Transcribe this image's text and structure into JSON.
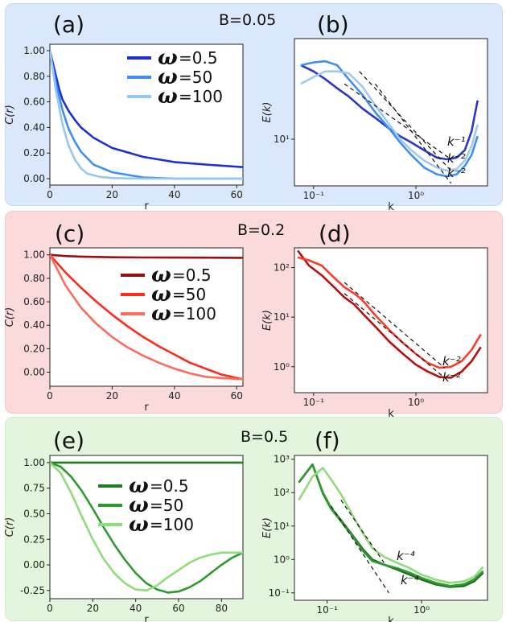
{
  "bands": [
    {
      "title": "B=0.05",
      "color": "#dbe8fb"
    },
    {
      "title": "B=0.2",
      "color": "#fadada"
    },
    {
      "title": "B=0.5",
      "color": "#e4f5dd"
    }
  ],
  "chart_data": [
    {
      "panel": "(a)",
      "type": "line",
      "xlabel": "r",
      "ylabel": "C(r)",
      "xlim": [
        0,
        62
      ],
      "ylim": [
        -0.05,
        1.05
      ],
      "xticks": [
        0,
        20,
        40,
        60
      ],
      "yticks": [
        0.0,
        0.2,
        0.4,
        0.6,
        0.8,
        1.0
      ],
      "ytick_labels": [
        "0.00",
        "0.20",
        "0.40",
        "0.60",
        "0.80",
        "1.00"
      ],
      "series": [
        {
          "name": "ω =0.5",
          "color": "#1f2fd6",
          "x": [
            0,
            1,
            2,
            3,
            4,
            6,
            8,
            10,
            14,
            20,
            30,
            40,
            50,
            62
          ],
          "y": [
            1.0,
            0.9,
            0.8,
            0.7,
            0.62,
            0.53,
            0.46,
            0.4,
            0.32,
            0.24,
            0.17,
            0.13,
            0.11,
            0.09
          ]
        },
        {
          "name": "ω =50",
          "color": "#3f8ff0",
          "x": [
            0,
            2,
            4,
            6,
            8,
            10,
            14,
            20,
            30,
            40,
            50,
            62
          ],
          "y": [
            1.0,
            0.74,
            0.54,
            0.39,
            0.29,
            0.21,
            0.11,
            0.05,
            0.01,
            0.0,
            0.0,
            0.0
          ]
        },
        {
          "name": "ω =100",
          "color": "#99c8ee",
          "x": [
            0,
            2,
            4,
            6,
            8,
            10,
            12,
            16,
            20,
            30,
            62
          ],
          "y": [
            1.0,
            0.68,
            0.43,
            0.26,
            0.15,
            0.08,
            0.04,
            0.015,
            0.005,
            0.0,
            0.0
          ]
        }
      ]
    },
    {
      "panel": "(b)",
      "type": "line",
      "xscale": "log",
      "yscale": "log",
      "xlabel": "k",
      "ylabel": "E(k)",
      "xlim": [
        0.065,
        5
      ],
      "ylim": [
        2.2,
        260
      ],
      "xticks": [
        0.1,
        1
      ],
      "xtick_labels": [
        "10⁻¹",
        "10⁰"
      ],
      "yticks": [
        10
      ],
      "ytick_labels": [
        "10¹"
      ],
      "series": [
        {
          "name": "ω =0.5",
          "color": "#2a35c9",
          "x": [
            0.075,
            0.1,
            0.13,
            0.17,
            0.22,
            0.3,
            0.4,
            0.55,
            0.7,
            0.9,
            1.2,
            1.6,
            2.0,
            2.5,
            3.0,
            3.5,
            4.0
          ],
          "y": [
            110,
            90,
            70,
            52,
            40,
            27,
            20,
            14,
            11,
            9,
            7,
            5.5,
            5.2,
            5.5,
            7,
            13,
            35
          ]
        },
        {
          "name": "ω =50",
          "color": "#3f8ff0",
          "x": [
            0.075,
            0.1,
            0.13,
            0.17,
            0.22,
            0.3,
            0.4,
            0.55,
            0.7,
            0.9,
            1.2,
            1.6,
            2.0,
            2.5,
            3.0,
            3.5,
            4.0
          ],
          "y": [
            110,
            120,
            125,
            110,
            70,
            42,
            24,
            14,
            9,
            6,
            4,
            3.2,
            3.0,
            3.2,
            4.2,
            6,
            11
          ]
        },
        {
          "name": "ω =100",
          "color": "#9fc9ee",
          "x": [
            0.075,
            0.1,
            0.13,
            0.17,
            0.22,
            0.3,
            0.4,
            0.55,
            0.7,
            0.9,
            1.2,
            1.6,
            2.0,
            2.5,
            3.0,
            3.5,
            4.0
          ],
          "y": [
            60,
            75,
            90,
            90,
            85,
            55,
            30,
            16,
            10,
            7,
            5,
            4,
            3.6,
            3.8,
            5,
            8,
            16
          ]
        }
      ],
      "guides": [
        {
          "label": "k⁻¹",
          "x": [
            0.2,
            2.2
          ],
          "y": [
            60,
            5.2
          ]
        },
        {
          "label": "k⁻²",
          "x": [
            0.28,
            2.2
          ],
          "y": [
            90,
            3.6
          ]
        },
        {
          "label": "k⁻²",
          "x": [
            0.4,
            2.2
          ],
          "y": [
            60,
            2.4
          ]
        }
      ]
    },
    {
      "panel": "(c)",
      "type": "line",
      "xlabel": "r",
      "ylabel": "C(r)",
      "xlim": [
        0,
        62
      ],
      "ylim": [
        -0.12,
        1.06
      ],
      "xticks": [
        0,
        20,
        40,
        60
      ],
      "yticks": [
        0.0,
        0.2,
        0.4,
        0.6,
        0.8,
        1.0
      ],
      "ytick_labels": [
        "0.00",
        "0.20",
        "0.40",
        "0.60",
        "0.80",
        "1.00"
      ],
      "series": [
        {
          "name": "ω =0.5",
          "color": "#9b0f0f",
          "x": [
            0,
            5,
            10,
            20,
            30,
            40,
            50,
            62
          ],
          "y": [
            1.0,
            0.99,
            0.985,
            0.98,
            0.978,
            0.977,
            0.976,
            0.975
          ]
        },
        {
          "name": "ω =50",
          "color": "#ff2a1a",
          "x": [
            0,
            5,
            10,
            15,
            20,
            25,
            30,
            35,
            40,
            45,
            50,
            55,
            62
          ],
          "y": [
            1.0,
            0.85,
            0.72,
            0.6,
            0.49,
            0.39,
            0.3,
            0.22,
            0.15,
            0.08,
            0.03,
            -0.02,
            -0.06
          ]
        },
        {
          "name": "ω =100",
          "color": "#ff6b5a",
          "x": [
            0,
            5,
            10,
            15,
            20,
            25,
            30,
            35,
            40,
            45,
            50,
            55,
            62
          ],
          "y": [
            1.0,
            0.74,
            0.55,
            0.41,
            0.3,
            0.21,
            0.14,
            0.08,
            0.03,
            -0.01,
            -0.04,
            -0.05,
            -0.06
          ]
        }
      ]
    },
    {
      "panel": "(d)",
      "type": "line",
      "xscale": "log",
      "yscale": "log",
      "xlabel": "k",
      "ylabel": "E(k)",
      "xlim": [
        0.065,
        5
      ],
      "ylim": [
        0.3,
        250
      ],
      "xticks": [
        0.1,
        1
      ],
      "xtick_labels": [
        "10⁻¹",
        "10⁰"
      ],
      "yticks": [
        1,
        10,
        100
      ],
      "ytick_labels": [
        "10⁰",
        "10¹",
        "10²"
      ],
      "series": [
        {
          "name": "ω =0.5",
          "color": "#b80f0f",
          "x": [
            0.07,
            0.09,
            0.12,
            0.15,
            0.2,
            0.25,
            0.3,
            0.4,
            0.55,
            0.75,
            1.0,
            1.3,
            1.7,
            2.2,
            2.8,
            3.5,
            4.3
          ],
          "y": [
            220,
            110,
            70,
            45,
            25,
            18,
            12,
            6.5,
            3.2,
            1.8,
            1.1,
            0.8,
            0.62,
            0.6,
            0.8,
            1.3,
            2.5
          ]
        },
        {
          "name": "ω =50",
          "color": "#ff3a2a",
          "x": [
            0.07,
            0.09,
            0.12,
            0.15,
            0.2,
            0.25,
            0.3,
            0.4,
            0.55,
            0.75,
            1.0,
            1.3,
            1.7,
            2.2,
            2.8,
            3.5,
            4.3
          ],
          "y": [
            160,
            140,
            110,
            70,
            40,
            30,
            22,
            11,
            5.5,
            3,
            1.8,
            1.2,
            0.95,
            1.0,
            1.3,
            2.2,
            4.5
          ]
        }
      ],
      "guides": [
        {
          "label": "k⁻²",
          "x": [
            0.2,
            1.9
          ],
          "y": [
            50,
            0.95
          ]
        },
        {
          "label": "k⁻²",
          "x": [
            0.2,
            1.9
          ],
          "y": [
            30,
            0.6
          ]
        }
      ]
    },
    {
      "panel": "(e)",
      "type": "line",
      "xlabel": "r",
      "ylabel": "C(r)",
      "xlim": [
        0,
        90
      ],
      "ylim": [
        -0.33,
        1.07
      ],
      "xticks": [
        0,
        20,
        40,
        60,
        80
      ],
      "yticks": [
        -0.25,
        0.0,
        0.25,
        0.5,
        0.75,
        1.0
      ],
      "ytick_labels": [
        "-0.25",
        "0.00",
        "0.25",
        "0.50",
        "0.75",
        "1.00"
      ],
      "series": [
        {
          "name": "ω =0.5",
          "color": "#1e7f1e",
          "x": [
            0,
            10,
            20,
            30,
            40,
            50,
            60,
            70,
            80,
            90
          ],
          "y": [
            1.0,
            1.0,
            1.0,
            1.0,
            1.0,
            1.0,
            1.0,
            1.0,
            1.0,
            1.0
          ]
        },
        {
          "name": "ω =50",
          "color": "#2e9a2e",
          "x": [
            0,
            5,
            10,
            15,
            20,
            25,
            30,
            35,
            40,
            45,
            50,
            55,
            60,
            65,
            70,
            75,
            80,
            85,
            90
          ],
          "y": [
            1.0,
            0.96,
            0.86,
            0.72,
            0.55,
            0.37,
            0.2,
            0.05,
            -0.08,
            -0.18,
            -0.24,
            -0.27,
            -0.26,
            -0.22,
            -0.16,
            -0.08,
            0.0,
            0.07,
            0.12
          ]
        },
        {
          "name": "ω =100",
          "color": "#8fdc7a",
          "x": [
            0,
            5,
            10,
            15,
            20,
            25,
            30,
            35,
            40,
            45,
            50,
            55,
            60,
            65,
            70,
            75,
            80,
            85,
            90
          ],
          "y": [
            1.0,
            0.9,
            0.7,
            0.47,
            0.25,
            0.06,
            -0.08,
            -0.18,
            -0.24,
            -0.25,
            -0.2,
            -0.12,
            -0.05,
            0.02,
            0.07,
            0.1,
            0.12,
            0.12,
            0.12
          ]
        }
      ]
    },
    {
      "panel": "(f)",
      "type": "line",
      "xscale": "log",
      "yscale": "log",
      "xlabel": "k",
      "ylabel": "E(k)",
      "xlim": [
        0.045,
        5
      ],
      "ylim": [
        0.06,
        1300
      ],
      "xticks": [
        0.1,
        1
      ],
      "xtick_labels": [
        "10⁻¹",
        "10⁰"
      ],
      "yticks": [
        0.1,
        1,
        10,
        100,
        1000
      ],
      "ytick_labels": [
        "10⁻¹",
        "10⁰",
        "10¹",
        "10²",
        "10³"
      ],
      "series": [
        {
          "name": "ω =0.5",
          "color": "#1f6e1f",
          "x": [
            0.05,
            0.07,
            0.09,
            0.11,
            0.14,
            0.18,
            0.24,
            0.3,
            0.4,
            0.55,
            0.75,
            1.0,
            1.4,
            2.0,
            2.8,
            3.6,
            4.5
          ],
          "y": [
            200,
            700,
            100,
            35,
            15,
            6,
            2,
            1.0,
            0.7,
            0.5,
            0.35,
            0.25,
            0.18,
            0.15,
            0.16,
            0.22,
            0.4
          ]
        },
        {
          "name": "ω =50",
          "color": "#2e9a2e",
          "x": [
            0.05,
            0.07,
            0.09,
            0.11,
            0.14,
            0.18,
            0.24,
            0.3,
            0.4,
            0.55,
            0.75,
            1.0,
            1.4,
            2.0,
            2.8,
            3.6,
            4.5
          ],
          "y": [
            200,
            700,
            95,
            33,
            14,
            5.5,
            1.8,
            0.9,
            0.7,
            0.55,
            0.4,
            0.28,
            0.2,
            0.16,
            0.18,
            0.25,
            0.45
          ]
        },
        {
          "name": "ω =100",
          "color": "#90dc7d",
          "x": [
            0.05,
            0.07,
            0.09,
            0.11,
            0.14,
            0.18,
            0.24,
            0.3,
            0.4,
            0.55,
            0.75,
            1.0,
            1.4,
            2.0,
            2.8,
            3.6,
            4.5
          ],
          "y": [
            60,
            300,
            550,
            250,
            90,
            25,
            6,
            2.2,
            1.2,
            0.8,
            0.55,
            0.35,
            0.25,
            0.2,
            0.22,
            0.3,
            0.6
          ]
        }
      ],
      "guides": [
        {
          "label": "k⁻⁴",
          "x": [
            0.14,
            0.4
          ],
          "y": [
            60,
            0.8
          ]
        },
        {
          "label": "k⁻⁴",
          "x": [
            0.11,
            0.45
          ],
          "y": [
            40,
            0.1
          ]
        }
      ]
    }
  ]
}
